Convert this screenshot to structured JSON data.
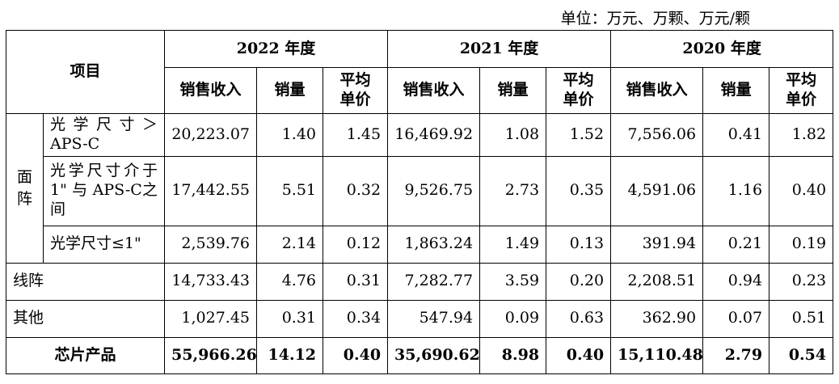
{
  "unit_note": "单位：万元、万颗、万元/颗",
  "header": {
    "item": "项目",
    "years": [
      "2022 年度",
      "2021 年度",
      "2020 年度"
    ],
    "cols": {
      "revenue": "销售收入",
      "volume": "销量",
      "avg_price": "平均单价"
    }
  },
  "groups": {
    "area": "面阵",
    "line": "线阵",
    "other": "其他",
    "total": "芯片产品"
  },
  "rows": {
    "r1": {
      "label": "光学尺寸＞APS-C",
      "y2022": [
        "20,223.07",
        "1.40",
        "1.45"
      ],
      "y2021": [
        "16,469.92",
        "1.08",
        "1.52"
      ],
      "y2020": [
        "7,556.06",
        "0.41",
        "1.82"
      ]
    },
    "r2": {
      "label": "光学尺寸介于1\" 与 APS-C之间",
      "y2022": [
        "17,442.55",
        "5.51",
        "0.32"
      ],
      "y2021": [
        "9,526.75",
        "2.73",
        "0.35"
      ],
      "y2020": [
        "4,591.06",
        "1.16",
        "0.40"
      ]
    },
    "r3": {
      "label": "光学尺寸≤1\"",
      "y2022": [
        "2,539.76",
        "2.14",
        "0.12"
      ],
      "y2021": [
        "1,863.24",
        "1.49",
        "0.13"
      ],
      "y2020": [
        "391.94",
        "0.21",
        "0.19"
      ]
    },
    "line": {
      "y2022": [
        "14,733.43",
        "4.76",
        "0.31"
      ],
      "y2021": [
        "7,282.77",
        "3.59",
        "0.20"
      ],
      "y2020": [
        "2,208.51",
        "0.94",
        "0.23"
      ]
    },
    "other": {
      "y2022": [
        "1,027.45",
        "0.31",
        "0.34"
      ],
      "y2021": [
        "547.94",
        "0.09",
        "0.63"
      ],
      "y2020": [
        "362.90",
        "0.07",
        "0.51"
      ]
    },
    "total": {
      "y2022": [
        "55,966.26",
        "14.12",
        "0.40"
      ],
      "y2021": [
        "35,690.62",
        "8.98",
        "0.40"
      ],
      "y2020": [
        "15,110.48",
        "2.79",
        "0.54"
      ]
    }
  }
}
